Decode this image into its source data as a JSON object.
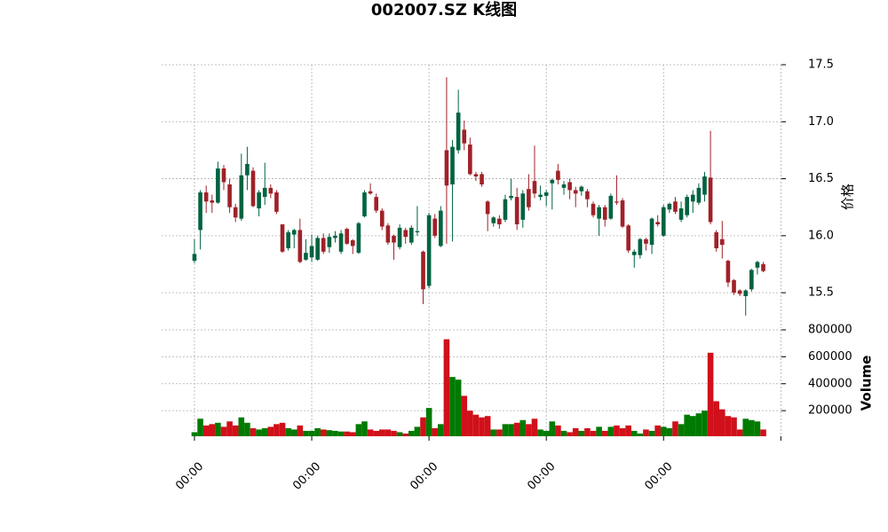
{
  "chart_data": {
    "type": "candlestick",
    "title": "002007.SZ K线图",
    "ylabel": "价格",
    "volume_label": "Volume",
    "open": [
      15.78,
      16.05,
      16.38,
      16.31,
      16.29,
      16.59,
      16.45,
      16.25,
      16.15,
      16.53,
      16.57,
      16.24,
      16.34,
      16.42,
      16.38,
      16.1,
      15.89,
      16.01,
      16.05,
      15.79,
      15.81,
      15.79,
      15.98,
      15.9,
      15.98,
      15.86,
      16.06,
      15.96,
      15.85,
      16.17,
      16.39,
      16.34,
      16.22,
      16.09,
      16.0,
      15.9,
      16.05,
      15.94,
      16.03,
      15.86,
      15.56,
      16.15,
      15.91,
      16.75,
      16.45,
      16.75,
      16.93,
      16.8,
      16.54,
      16.54,
      16.3,
      16.11,
      16.15,
      16.14,
      16.33,
      16.34,
      16.14,
      16.41,
      16.48,
      16.34,
      16.35,
      16.46,
      16.57,
      16.42,
      16.47,
      16.4,
      16.39,
      16.39,
      16.28,
      16.15,
      16.25,
      16.15,
      16.3,
      16.31,
      16.09,
      15.83,
      15.83,
      15.97,
      15.92,
      16.12,
      16.0,
      16.23,
      16.3,
      16.14,
      16.18,
      16.3,
      16.29,
      16.36,
      16.51,
      16.03,
      15.97,
      15.78,
      15.61,
      15.52,
      15.47,
      15.53,
      15.72,
      15.75
    ],
    "high": [
      15.97,
      16.4,
      16.44,
      16.36,
      16.65,
      16.62,
      16.5,
      16.28,
      16.72,
      16.78,
      16.6,
      16.4,
      16.64,
      16.45,
      16.4,
      16.1,
      16.05,
      16.06,
      16.15,
      15.97,
      16.01,
      16.0,
      16.02,
      16.02,
      16.04,
      16.05,
      16.07,
      15.97,
      16.12,
      16.4,
      16.46,
      16.37,
      16.24,
      16.11,
      16.01,
      16.1,
      16.07,
      16.09,
      16.26,
      15.87,
      16.2,
      16.19,
      16.26,
      17.39,
      16.84,
      17.28,
      17.01,
      16.86,
      16.56,
      16.56,
      16.31,
      16.17,
      16.18,
      16.36,
      16.5,
      16.42,
      16.4,
      16.54,
      16.79,
      16.44,
      16.4,
      16.5,
      16.63,
      16.48,
      16.5,
      16.43,
      16.44,
      16.41,
      16.3,
      16.27,
      16.27,
      16.37,
      16.53,
      16.33,
      16.1,
      15.88,
      15.98,
      15.98,
      16.16,
      16.18,
      16.27,
      16.29,
      16.34,
      16.3,
      16.36,
      16.4,
      16.46,
      16.56,
      16.92,
      16.05,
      16.13,
      15.79,
      15.62,
      15.53,
      15.53,
      15.71,
      15.78,
      15.77
    ],
    "low": [
      15.76,
      15.88,
      16.2,
      16.2,
      16.28,
      16.4,
      16.2,
      16.12,
      16.13,
      16.4,
      16.25,
      16.17,
      16.27,
      16.33,
      16.19,
      15.85,
      15.87,
      15.89,
      15.76,
      15.78,
      15.77,
      15.78,
      15.84,
      15.85,
      15.94,
      15.84,
      15.92,
      15.84,
      15.84,
      16.16,
      16.36,
      16.2,
      16.05,
      15.92,
      15.79,
      15.88,
      15.93,
      15.92,
      16.0,
      15.4,
      15.54,
      15.98,
      15.9,
      15.93,
      15.95,
      16.72,
      16.75,
      16.53,
      16.48,
      16.43,
      16.04,
      16.08,
      16.06,
      16.12,
      16.31,
      16.05,
      16.07,
      16.22,
      16.33,
      16.31,
      16.26,
      16.23,
      16.45,
      16.36,
      16.32,
      16.25,
      16.35,
      16.25,
      16.16,
      16.0,
      16.08,
      16.14,
      16.27,
      16.07,
      15.85,
      15.72,
      15.8,
      15.87,
      15.84,
      16.08,
      15.99,
      16.2,
      16.19,
      16.12,
      16.16,
      16.2,
      16.27,
      16.3,
      16.1,
      15.86,
      15.8,
      15.55,
      15.48,
      15.47,
      15.3,
      15.51,
      15.66,
      15.68
    ],
    "close": [
      15.84,
      16.38,
      16.3,
      16.29,
      16.59,
      16.47,
      16.25,
      16.16,
      16.53,
      16.63,
      16.26,
      16.38,
      16.42,
      16.37,
      16.21,
      15.86,
      16.03,
      16.05,
      15.77,
      15.85,
      15.91,
      15.98,
      15.86,
      15.99,
      16.0,
      16.02,
      15.93,
      15.91,
      16.11,
      16.38,
      16.37,
      16.22,
      16.08,
      15.94,
      15.94,
      16.07,
      15.99,
      16.07,
      16.04,
      15.53,
      16.18,
      16.0,
      16.22,
      16.44,
      16.78,
      17.08,
      16.81,
      16.54,
      16.52,
      16.45,
      16.19,
      16.16,
      16.1,
      16.32,
      16.35,
      16.1,
      16.37,
      16.25,
      16.37,
      16.36,
      16.38,
      16.49,
      16.49,
      16.45,
      16.4,
      16.37,
      16.43,
      16.32,
      16.18,
      16.25,
      16.14,
      16.35,
      16.29,
      16.08,
      15.87,
      15.86,
      15.97,
      15.93,
      16.15,
      16.1,
      16.25,
      16.28,
      16.21,
      16.24,
      16.34,
      16.36,
      16.42,
      16.52,
      16.12,
      15.89,
      15.92,
      15.59,
      15.5,
      15.49,
      15.52,
      15.7,
      15.77,
      15.69
    ],
    "volume": [
      40000,
      140000,
      90000,
      100000,
      110000,
      80000,
      120000,
      90000,
      150000,
      110000,
      70000,
      60000,
      70000,
      80000,
      100000,
      110000,
      70000,
      60000,
      90000,
      50000,
      50000,
      70000,
      60000,
      55000,
      50000,
      45000,
      45000,
      40000,
      100000,
      120000,
      60000,
      50000,
      60000,
      60000,
      50000,
      40000,
      30000,
      50000,
      80000,
      150000,
      220000,
      70000,
      100000,
      730000,
      450000,
      430000,
      310000,
      200000,
      170000,
      150000,
      160000,
      60000,
      60000,
      100000,
      100000,
      110000,
      130000,
      100000,
      140000,
      60000,
      50000,
      120000,
      90000,
      50000,
      40000,
      70000,
      50000,
      70000,
      50000,
      80000,
      50000,
      80000,
      90000,
      70000,
      90000,
      50000,
      30000,
      60000,
      50000,
      90000,
      80000,
      70000,
      120000,
      100000,
      170000,
      160000,
      180000,
      200000,
      630000,
      270000,
      210000,
      160000,
      150000,
      60000,
      140000,
      130000,
      120000,
      60000
    ],
    "up_color": "#006340",
    "down_color": "#a02128",
    "volume_up_color": "#007a00",
    "volume_down_color": "#d0101a",
    "grid": true,
    "xlim": [
      -5.6,
      100.1
    ],
    "xticks": [
      {
        "value": 0,
        "label": "00:00"
      },
      {
        "value": 20,
        "label": "00:00"
      },
      {
        "value": 40,
        "label": "00:00"
      },
      {
        "value": 60,
        "label": "00:00"
      },
      {
        "value": 80,
        "label": "00:00"
      },
      {
        "value": 100,
        "label": null
      }
    ],
    "ylim": [
      15.19,
      17.5
    ],
    "yticks": [
      15.5,
      {
        "value": 16,
        "label": "16.0"
      },
      16.5,
      {
        "value": 17,
        "label": "17.0"
      },
      17.5
    ],
    "volume_ylim": [
      10000,
      800000
    ],
    "volume_yticks": [
      200000,
      400000,
      600000,
      800000
    ]
  }
}
